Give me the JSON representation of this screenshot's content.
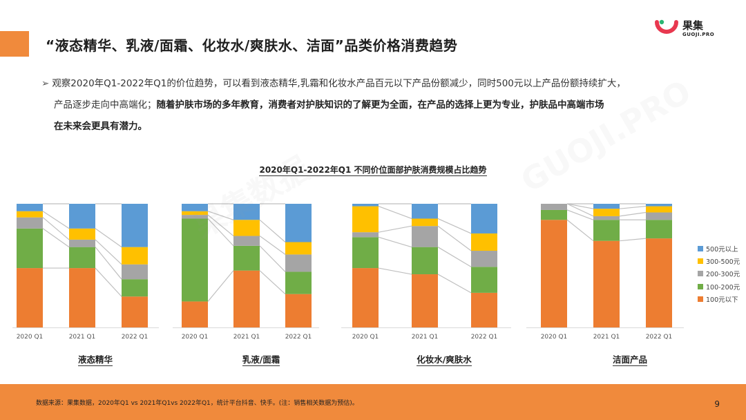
{
  "logo": {
    "name": "果集",
    "sub": "GUOJI.PRO"
  },
  "title": "“液态精华、乳液/面霜、化妆水/爽肤水、洁面”品类价格消费趋势",
  "intro": {
    "arrow": "➢",
    "line1": "观察2020年Q1-2022年Q1的价位趋势，可以看到液态精华,乳霜和化妆水产品百元以下产品份额减少，同时500元以上产品份额持续扩大，",
    "line2_normal": "产品逐步走向中高端化；",
    "line2_bold": "随着护肤市场的多年教育，消费者对护肤知识的了解更为全面，在产品的选择上更为专业，护肤品中高端市场",
    "line3_bold": "在未来会更具有潜力。"
  },
  "footer": {
    "note": "数据来源：果集数据，2020年Q1 vs 2021年Q1vs 2022年Q1，统计平台抖音、快手。(注：销售相关数据为预估)。",
    "page": "9"
  },
  "watermark": [
    "果集数据",
    "GUOJI.PRO"
  ],
  "chart_data": {
    "type": "bar",
    "stacked": true,
    "percent": true,
    "title": "2020年Q1-2022年Q1 不同价位面部护肤消费规模占比趋势",
    "x": [
      "2020 Q1",
      "2021 Q1",
      "2022 Q1"
    ],
    "legend_position": "right",
    "grid": false,
    "ylim": [
      0,
      100
    ],
    "series": [
      {
        "name": "100元以下",
        "color": "#ED7D31"
      },
      {
        "name": "100-200元",
        "color": "#70AD47"
      },
      {
        "name": "200-300元",
        "color": "#A5A5A5"
      },
      {
        "name": "300-500元",
        "color": "#FFC000"
      },
      {
        "name": "500元以上",
        "color": "#5B9BD5"
      }
    ],
    "legend_order": [
      "500元以上",
      "300-500元",
      "200-300元",
      "100-200元",
      "100元以下"
    ],
    "panels": [
      {
        "label": "液态精华",
        "values": [
          [
            48,
            32,
            9,
            5,
            6
          ],
          [
            48,
            17,
            6,
            9,
            20
          ],
          [
            25,
            14,
            12,
            14,
            35
          ]
        ]
      },
      {
        "label": "乳液/面霜",
        "values": [
          [
            21,
            67,
            3,
            3,
            6
          ],
          [
            46,
            20,
            8,
            13,
            13
          ],
          [
            27,
            18,
            14,
            10,
            31
          ]
        ]
      },
      {
        "label": "化妆水/爽肤水",
        "values": [
          [
            48,
            25,
            4,
            21,
            2
          ],
          [
            43,
            22,
            17,
            6,
            12
          ],
          [
            28,
            21,
            13,
            14,
            24
          ]
        ]
      },
      {
        "label": "洁面产品",
        "values": [
          [
            87,
            8,
            5,
            0,
            0
          ],
          [
            70,
            17,
            3,
            6,
            4
          ],
          [
            72,
            15,
            6,
            5,
            2
          ]
        ]
      }
    ]
  }
}
